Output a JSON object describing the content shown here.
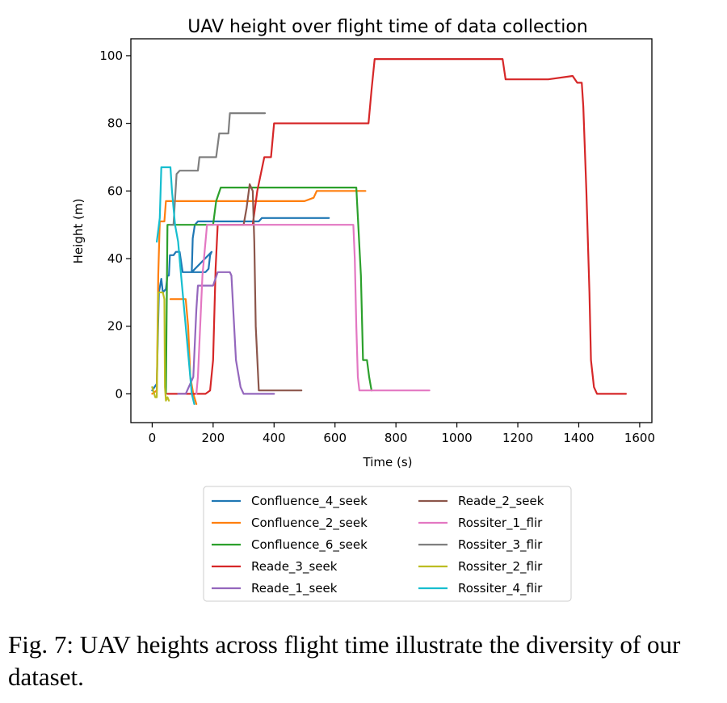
{
  "chart_data": {
    "type": "line",
    "title": "UAV height over flight time of data collection",
    "xlabel": "Time (s)",
    "ylabel": "Height (m)",
    "xlim": [
      -70,
      1640
    ],
    "ylim": [
      -8.5,
      105
    ],
    "xticks": [
      0,
      200,
      400,
      600,
      800,
      1000,
      1200,
      1400,
      1600
    ],
    "yticks": [
      0,
      20,
      40,
      60,
      80,
      100
    ],
    "grid": false,
    "legend_position": "below",
    "series": [
      {
        "name": "Confluence_4_seek",
        "color": "#1f77b4",
        "points": [
          [
            0,
            1
          ],
          [
            15,
            3
          ],
          [
            22,
            30
          ],
          [
            30,
            34
          ],
          [
            35,
            30
          ],
          [
            45,
            31
          ],
          [
            50,
            35
          ],
          [
            55,
            35
          ],
          [
            58,
            41
          ],
          [
            70,
            41
          ],
          [
            78,
            42
          ],
          [
            90,
            42
          ],
          [
            100,
            36
          ],
          [
            150,
            36
          ],
          [
            175,
            36
          ],
          [
            185,
            37
          ],
          [
            190,
            41
          ],
          [
            195,
            42
          ],
          [
            130,
            36
          ],
          [
            133,
            46
          ],
          [
            140,
            50
          ],
          [
            150,
            51
          ],
          [
            300,
            51
          ],
          [
            350,
            51
          ],
          [
            360,
            52
          ],
          [
            400,
            52
          ],
          [
            500,
            52
          ],
          [
            550,
            52
          ],
          [
            580,
            52
          ]
        ]
      },
      {
        "name": "Confluence_2_seek",
        "color": "#ff7f0e",
        "points": [
          [
            0,
            0
          ],
          [
            15,
            1
          ],
          [
            20,
            35
          ],
          [
            25,
            51
          ],
          [
            40,
            51
          ],
          [
            45,
            57
          ],
          [
            60,
            57
          ],
          [
            200,
            57
          ],
          [
            300,
            57
          ],
          [
            400,
            57
          ],
          [
            500,
            57
          ],
          [
            530,
            58
          ],
          [
            540,
            60
          ],
          [
            600,
            60
          ],
          [
            700,
            60
          ]
        ]
      },
      {
        "name": "Confluence_2_seek_b",
        "color": "#ff7f0e",
        "hide_legend": true,
        "points": [
          [
            60,
            28
          ],
          [
            100,
            28
          ],
          [
            110,
            28
          ],
          [
            118,
            20
          ],
          [
            125,
            5
          ],
          [
            135,
            0
          ],
          [
            145,
            -3
          ]
        ]
      },
      {
        "name": "Confluence_6_seek",
        "color": "#2ca02c",
        "points": [
          [
            45,
            0
          ],
          [
            50,
            50
          ],
          [
            80,
            50
          ],
          [
            200,
            50
          ],
          [
            210,
            57
          ],
          [
            225,
            61
          ],
          [
            300,
            61
          ],
          [
            400,
            61
          ],
          [
            500,
            61
          ],
          [
            600,
            61
          ],
          [
            670,
            61
          ],
          [
            685,
            35
          ],
          [
            692,
            10
          ],
          [
            705,
            10
          ],
          [
            712,
            5
          ],
          [
            718,
            2
          ],
          [
            720,
            1
          ]
        ]
      },
      {
        "name": "Reade_3_seek",
        "color": "#d62728",
        "points": [
          [
            50,
            0
          ],
          [
            100,
            0
          ],
          [
            110,
            0
          ],
          [
            160,
            0
          ],
          [
            175,
            0
          ],
          [
            190,
            1
          ],
          [
            200,
            10
          ],
          [
            208,
            37
          ],
          [
            215,
            50
          ],
          [
            230,
            50
          ],
          [
            300,
            50
          ],
          [
            330,
            50
          ],
          [
            345,
            60
          ],
          [
            368,
            70
          ],
          [
            390,
            70
          ],
          [
            400,
            80
          ],
          [
            600,
            80
          ],
          [
            710,
            80
          ],
          [
            720,
            90
          ],
          [
            730,
            99
          ],
          [
            900,
            99
          ],
          [
            1000,
            99
          ],
          [
            1150,
            99
          ],
          [
            1160,
            93
          ],
          [
            1300,
            93
          ],
          [
            1380,
            94
          ],
          [
            1395,
            92
          ],
          [
            1410,
            92
          ],
          [
            1415,
            85
          ],
          [
            1425,
            60
          ],
          [
            1435,
            30
          ],
          [
            1440,
            10
          ],
          [
            1450,
            2
          ],
          [
            1460,
            0
          ],
          [
            1500,
            0
          ],
          [
            1555,
            0
          ]
        ]
      },
      {
        "name": "Reade_1_seek",
        "color": "#9467bd",
        "points": [
          [
            85,
            0
          ],
          [
            110,
            0
          ],
          [
            135,
            5
          ],
          [
            145,
            25
          ],
          [
            150,
            32
          ],
          [
            200,
            32
          ],
          [
            215,
            36
          ],
          [
            255,
            36
          ],
          [
            260,
            35
          ],
          [
            275,
            10
          ],
          [
            290,
            2
          ],
          [
            300,
            0
          ],
          [
            400,
            0
          ]
        ]
      },
      {
        "name": "Reade_2_seek",
        "color": "#8c564b",
        "points": [
          [
            225,
            50
          ],
          [
            235,
            50
          ],
          [
            250,
            50
          ],
          [
            300,
            50
          ],
          [
            310,
            55
          ],
          [
            320,
            62
          ],
          [
            330,
            60
          ],
          [
            335,
            45
          ],
          [
            340,
            20
          ],
          [
            350,
            1
          ],
          [
            380,
            1
          ],
          [
            490,
            1
          ]
        ]
      },
      {
        "name": "Rossiter_1_flir",
        "color": "#e377c2",
        "points": [
          [
            145,
            0
          ],
          [
            150,
            5
          ],
          [
            165,
            35
          ],
          [
            180,
            50
          ],
          [
            300,
            50
          ],
          [
            500,
            50
          ],
          [
            660,
            50
          ],
          [
            665,
            40
          ],
          [
            670,
            20
          ],
          [
            675,
            5
          ],
          [
            680,
            1
          ],
          [
            700,
            1
          ],
          [
            800,
            1
          ],
          [
            850,
            1
          ],
          [
            910,
            1
          ]
        ]
      },
      {
        "name": "Rossiter_3_flir",
        "color": "#7f7f7f",
        "points": [
          [
            60,
            50
          ],
          [
            70,
            50
          ],
          [
            80,
            65
          ],
          [
            90,
            66
          ],
          [
            150,
            66
          ],
          [
            155,
            70
          ],
          [
            190,
            70
          ],
          [
            210,
            70
          ],
          [
            220,
            77
          ],
          [
            250,
            77
          ],
          [
            255,
            83
          ],
          [
            300,
            83
          ],
          [
            370,
            83
          ]
        ]
      },
      {
        "name": "Rossiter_2_flir",
        "color": "#bcbd22",
        "points": [
          [
            0,
            2
          ],
          [
            10,
            -1
          ],
          [
            15,
            -1
          ],
          [
            20,
            30
          ],
          [
            35,
            30
          ],
          [
            40,
            28
          ],
          [
            42,
            2
          ],
          [
            45,
            -2
          ],
          [
            50,
            -1
          ],
          [
            55,
            -2
          ]
        ]
      },
      {
        "name": "Rossiter_4_flir",
        "color": "#17becf",
        "points": [
          [
            15,
            45
          ],
          [
            25,
            52
          ],
          [
            30,
            67
          ],
          [
            60,
            67
          ],
          [
            65,
            60
          ],
          [
            75,
            50
          ],
          [
            85,
            45
          ],
          [
            95,
            35
          ],
          [
            105,
            25
          ],
          [
            120,
            10
          ],
          [
            130,
            0
          ],
          [
            138,
            -3
          ]
        ]
      }
    ],
    "legend": [
      "Confluence_4_seek",
      "Confluence_2_seek",
      "Confluence_6_seek",
      "Reade_3_seek",
      "Reade_1_seek",
      "Reade_2_seek",
      "Rossiter_1_flir",
      "Rossiter_3_flir",
      "Rossiter_2_flir",
      "Rossiter_4_flir"
    ]
  },
  "caption": "Fig. 7: UAV heights across flight time illustrate the diversity of our dataset."
}
